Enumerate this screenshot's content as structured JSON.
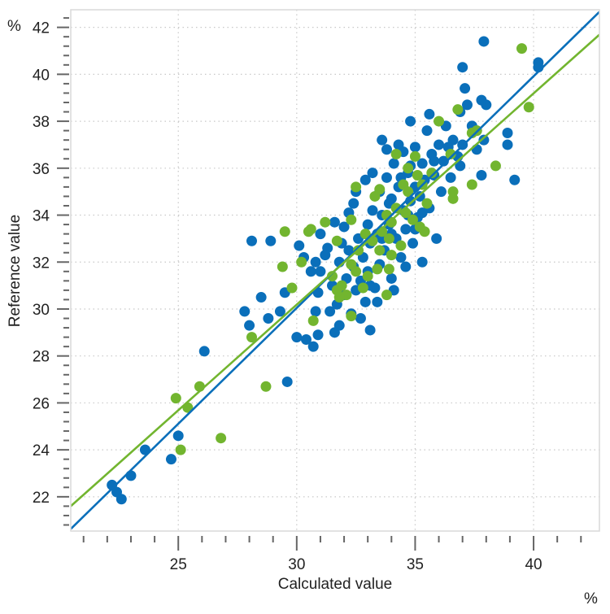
{
  "chart_data": {
    "type": "scatter",
    "title": "",
    "xlabel": "Calculated value",
    "ylabel": "Reference value",
    "x_unit": "%",
    "y_unit": "%",
    "xlim": [
      20.46,
      42.78
    ],
    "ylim": [
      20.54,
      42.75
    ],
    "x_ticks": [
      25,
      30,
      35,
      40
    ],
    "y_ticks": [
      22,
      24,
      26,
      28,
      30,
      32,
      34,
      36,
      38,
      40,
      42
    ],
    "x_minor_step": 1,
    "y_minor_step": 0.4,
    "grid": true,
    "legend": "none",
    "colors": {
      "series_1": "#0a6fba",
      "series_2": "#72b52f",
      "frame": "#d9d9d9",
      "grid": "#c8c8c8"
    },
    "fit_lines": [
      {
        "color": "#0a6fba",
        "from": [
          20.46,
          20.63
        ],
        "to": [
          42.78,
          42.66
        ]
      },
      {
        "color": "#72b52f",
        "from": [
          20.46,
          21.6
        ],
        "to": [
          42.78,
          41.69
        ]
      }
    ],
    "series": [
      {
        "color": "#0a6fba",
        "points": [
          [
            22.2,
            22.5
          ],
          [
            22.4,
            22.2
          ],
          [
            22.6,
            21.9
          ],
          [
            23.0,
            22.9
          ],
          [
            23.6,
            24.0
          ],
          [
            24.7,
            23.6
          ],
          [
            25.0,
            24.6
          ],
          [
            26.1,
            28.2
          ],
          [
            27.8,
            29.9
          ],
          [
            28.0,
            29.3
          ],
          [
            28.1,
            32.9
          ],
          [
            28.5,
            30.5
          ],
          [
            28.8,
            29.6
          ],
          [
            28.9,
            32.9
          ],
          [
            29.3,
            29.9
          ],
          [
            29.6,
            26.9
          ],
          [
            30.0,
            28.8
          ],
          [
            30.4,
            28.7
          ],
          [
            30.7,
            28.4
          ],
          [
            30.9,
            28.9
          ],
          [
            30.1,
            32.7
          ],
          [
            29.5,
            30.7
          ],
          [
            30.8,
            29.9
          ],
          [
            30.3,
            32.2
          ],
          [
            37.9,
            41.4
          ],
          [
            38.0,
            38.7
          ],
          [
            37.0,
            40.3
          ],
          [
            37.1,
            39.4
          ],
          [
            40.2,
            40.5
          ],
          [
            40.2,
            40.3
          ],
          [
            38.9,
            37.5
          ],
          [
            38.9,
            37.0
          ],
          [
            39.2,
            35.5
          ],
          [
            37.8,
            35.7
          ],
          [
            34.8,
            38.0
          ],
          [
            33.6,
            37.2
          ],
          [
            35.3,
            32.0
          ],
          [
            33.1,
            29.1
          ],
          [
            31.6,
            29.0
          ],
          [
            31.0,
            31.6
          ],
          [
            31.3,
            32.6
          ],
          [
            31.5,
            31.0
          ],
          [
            31.7,
            30.2
          ],
          [
            31.8,
            32.0
          ],
          [
            32.0,
            30.6
          ],
          [
            32.1,
            31.3
          ],
          [
            32.2,
            32.5
          ],
          [
            32.4,
            31.8
          ],
          [
            32.5,
            30.8
          ],
          [
            32.6,
            33.0
          ],
          [
            32.7,
            31.2
          ],
          [
            32.8,
            32.2
          ],
          [
            32.9,
            30.3
          ],
          [
            33.0,
            33.6
          ],
          [
            33.0,
            31.6
          ],
          [
            33.1,
            32.8
          ],
          [
            33.2,
            34.2
          ],
          [
            33.3,
            30.9
          ],
          [
            33.4,
            33.2
          ],
          [
            33.5,
            31.9
          ],
          [
            33.5,
            35.0
          ],
          [
            33.6,
            34.0
          ],
          [
            33.7,
            32.5
          ],
          [
            33.8,
            35.6
          ],
          [
            33.9,
            33.6
          ],
          [
            34.0,
            31.3
          ],
          [
            34.0,
            34.7
          ],
          [
            34.1,
            36.2
          ],
          [
            34.2,
            33.0
          ],
          [
            34.3,
            35.2
          ],
          [
            34.4,
            32.2
          ],
          [
            34.5,
            34.2
          ],
          [
            34.5,
            36.7
          ],
          [
            34.6,
            33.4
          ],
          [
            34.7,
            35.8
          ],
          [
            34.8,
            34.6
          ],
          [
            34.9,
            32.8
          ],
          [
            35.0,
            35.2
          ],
          [
            35.0,
            36.9
          ],
          [
            35.1,
            33.9
          ],
          [
            35.2,
            34.8
          ],
          [
            35.3,
            36.2
          ],
          [
            35.4,
            35.5
          ],
          [
            35.5,
            37.6
          ],
          [
            35.6,
            34.3
          ],
          [
            35.7,
            36.6
          ],
          [
            35.8,
            35.7
          ],
          [
            35.9,
            33.0
          ],
          [
            36.0,
            37.0
          ],
          [
            36.1,
            35.0
          ],
          [
            36.2,
            36.3
          ],
          [
            36.3,
            37.8
          ],
          [
            36.5,
            35.6
          ],
          [
            36.6,
            37.2
          ],
          [
            36.8,
            36.5
          ],
          [
            36.9,
            38.4
          ],
          [
            37.0,
            37.0
          ],
          [
            37.2,
            38.7
          ],
          [
            37.4,
            37.8
          ],
          [
            37.6,
            36.8
          ],
          [
            37.8,
            38.9
          ],
          [
            37.9,
            37.2
          ],
          [
            33.2,
            35.8
          ],
          [
            32.9,
            35.5
          ],
          [
            32.4,
            34.5
          ],
          [
            32.0,
            33.5
          ],
          [
            31.6,
            33.7
          ],
          [
            31.0,
            33.2
          ],
          [
            30.6,
            31.6
          ],
          [
            30.9,
            30.7
          ],
          [
            31.4,
            29.9
          ],
          [
            31.8,
            29.3
          ],
          [
            32.3,
            29.8
          ],
          [
            32.7,
            29.6
          ],
          [
            33.4,
            30.3
          ],
          [
            34.1,
            30.8
          ],
          [
            34.6,
            31.8
          ],
          [
            33.8,
            36.8
          ],
          [
            34.3,
            37.0
          ],
          [
            35.6,
            38.3
          ],
          [
            36.4,
            36.9
          ],
          [
            34.0,
            33.2
          ],
          [
            34.8,
            36.1
          ],
          [
            35.3,
            34.1
          ],
          [
            33.6,
            33.0
          ],
          [
            32.2,
            34.1
          ],
          [
            31.2,
            32.3
          ],
          [
            30.8,
            32.0
          ],
          [
            33.9,
            34.5
          ],
          [
            35.0,
            33.4
          ],
          [
            36.9,
            36.1
          ],
          [
            37.6,
            37.6
          ],
          [
            31.9,
            32.8
          ],
          [
            33.1,
            31.0
          ],
          [
            34.4,
            35.6
          ],
          [
            35.8,
            36.3
          ],
          [
            32.5,
            35.0
          ],
          [
            34.7,
            34.0
          ]
        ]
      },
      {
        "color": "#72b52f",
        "points": [
          [
            39.5,
            41.1
          ],
          [
            39.8,
            38.6
          ],
          [
            38.4,
            36.1
          ],
          [
            37.4,
            35.3
          ],
          [
            24.9,
            26.2
          ],
          [
            25.4,
            25.8
          ],
          [
            25.9,
            26.7
          ],
          [
            26.8,
            24.5
          ],
          [
            25.1,
            24.0
          ],
          [
            28.7,
            26.7
          ],
          [
            28.1,
            28.8
          ],
          [
            29.5,
            33.3
          ],
          [
            29.4,
            31.8
          ],
          [
            29.8,
            30.9
          ],
          [
            30.5,
            33.3
          ],
          [
            30.6,
            33.4
          ],
          [
            30.2,
            32.0
          ],
          [
            31.2,
            33.7
          ],
          [
            32.3,
            33.8
          ],
          [
            32.5,
            35.2
          ],
          [
            33.5,
            35.1
          ],
          [
            34.2,
            36.6
          ],
          [
            34.7,
            36.0
          ],
          [
            36.8,
            38.5
          ],
          [
            37.4,
            37.5
          ],
          [
            37.6,
            37.6
          ],
          [
            36.0,
            38.0
          ],
          [
            36.5,
            36.6
          ],
          [
            36.6,
            35.0
          ],
          [
            36.6,
            34.7
          ],
          [
            35.4,
            33.3
          ],
          [
            30.7,
            29.5
          ],
          [
            33.8,
            30.6
          ],
          [
            32.3,
            29.7
          ],
          [
            31.5,
            31.4
          ],
          [
            31.7,
            30.8
          ],
          [
            31.9,
            31.0
          ],
          [
            32.1,
            30.6
          ],
          [
            32.3,
            31.9
          ],
          [
            32.6,
            32.5
          ],
          [
            32.8,
            30.9
          ],
          [
            33.0,
            31.4
          ],
          [
            33.2,
            32.9
          ],
          [
            33.4,
            31.7
          ],
          [
            33.6,
            33.3
          ],
          [
            33.8,
            34.0
          ],
          [
            34.0,
            33.7
          ],
          [
            34.2,
            34.3
          ],
          [
            34.5,
            35.3
          ],
          [
            34.7,
            35.0
          ],
          [
            34.9,
            33.8
          ],
          [
            35.1,
            35.7
          ],
          [
            35.3,
            35.3
          ],
          [
            35.5,
            34.5
          ],
          [
            35.2,
            33.5
          ],
          [
            34.4,
            32.7
          ],
          [
            33.5,
            32.5
          ],
          [
            32.9,
            33.2
          ],
          [
            31.7,
            32.9
          ],
          [
            33.9,
            33.0
          ],
          [
            34.6,
            34.1
          ],
          [
            35.0,
            36.5
          ],
          [
            33.3,
            34.8
          ],
          [
            34.0,
            32.3
          ],
          [
            31.8,
            30.5
          ],
          [
            32.5,
            31.6
          ],
          [
            33.9,
            31.7
          ],
          [
            35.7,
            35.8
          ]
        ]
      }
    ]
  }
}
